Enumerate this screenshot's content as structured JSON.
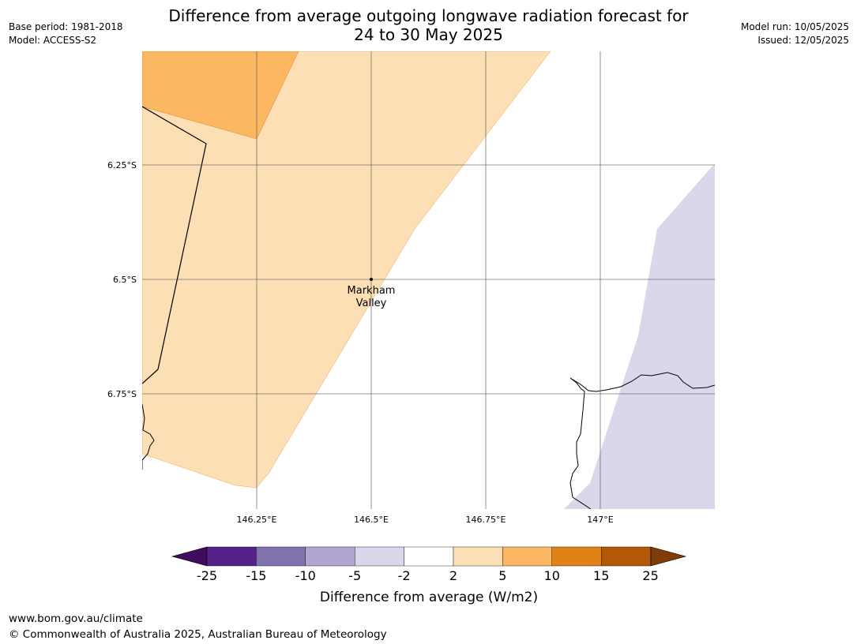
{
  "title_line1": "Difference from average outgoing longwave radiation forecast for",
  "title_line2": "24 to 30 May 2025",
  "base_period": "Base period: 1981-2018",
  "model": "Model: ACCESS-S2",
  "model_run": "Model run: 10/05/2025",
  "issued": "Issued: 12/05/2025",
  "map": {
    "lat_labels": [
      "6.25°S",
      "6.5°S",
      "6.75°S"
    ],
    "lon_labels": [
      "146.25°E",
      "146.5°E",
      "146.75°E",
      "147°E"
    ],
    "place": {
      "line1": "Markham",
      "line2": "Valley"
    }
  },
  "colorbar": {
    "ticks": [
      "-25",
      "-15",
      "-10",
      "-5",
      "-2",
      "2",
      "5",
      "10",
      "15",
      "25"
    ],
    "colors": [
      "#3f0d5c",
      "#56228a",
      "#8073ad",
      "#afa5d0",
      "#d8d8ea",
      "#ffffff",
      "#fddfb5",
      "#fbb762",
      "#e08214",
      "#b35807",
      "#7f3b08"
    ],
    "label": "Difference from average (W/m2)"
  },
  "footer_url": "www.bom.gov.au/climate",
  "footer_copyright": "© Commonwealth of Australia 2025, Australian Bureau of Meteorology"
}
